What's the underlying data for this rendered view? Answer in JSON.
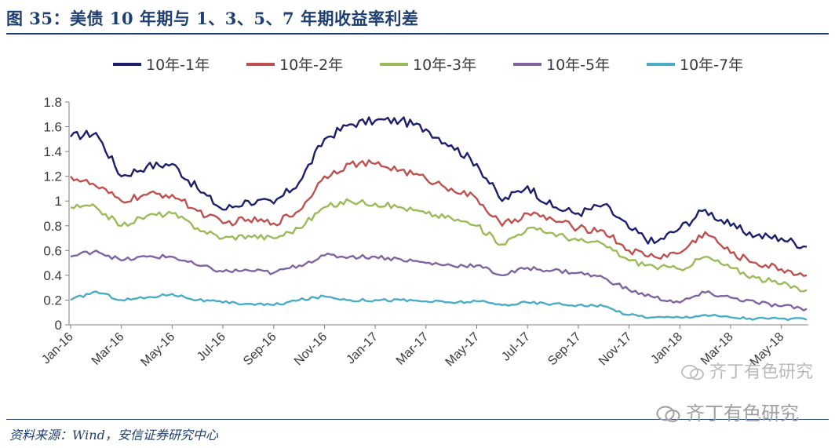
{
  "figure_title": "图 35：美债 10 年期与 1、3、5、7 年期收益率利差",
  "source_note": "资料来源：Wind，安信证券研究中心",
  "watermark": "齐丁有色研究",
  "colors": {
    "title": "#1f3f73",
    "axis": "#7f7f7f",
    "text": "#3a3a3a"
  },
  "chart_data": {
    "type": "line",
    "title": "",
    "xlabel": "",
    "ylabel": "",
    "ylim": [
      0,
      1.8
    ],
    "yticks": [
      "0",
      "0.2",
      "0.4",
      "0.6",
      "0.8",
      "1",
      "1.2",
      "1.4",
      "1.6",
      "1.8"
    ],
    "grid": false,
    "legend_position": "top",
    "x_tick_labels": [
      "Jan-16",
      "Mar-16",
      "May-16",
      "Jul-16",
      "Sep-16",
      "Nov-16",
      "Jan-17",
      "Mar-17",
      "May-17",
      "Jul-17",
      "Sep-17",
      "Nov-17",
      "Jan-18",
      "Mar-18",
      "May-18"
    ],
    "x": [
      "Jan-16",
      "Feb-16",
      "Mar-16",
      "Apr-16",
      "May-16",
      "Jun-16",
      "Jul-16",
      "Aug-16",
      "Sep-16",
      "Oct-16",
      "Nov-16",
      "Dec-16",
      "Jan-17",
      "Feb-17",
      "Mar-17",
      "Apr-17",
      "May-17",
      "Jun-17",
      "Jul-17",
      "Aug-17",
      "Sep-17",
      "Oct-17",
      "Nov-17",
      "Dec-17",
      "Jan-18",
      "Feb-18",
      "Mar-18",
      "Apr-18",
      "May-18",
      "Jun-18"
    ],
    "series": [
      {
        "name": "10年-1年",
        "color": "#1b1f6e",
        "values": [
          1.52,
          1.55,
          1.2,
          1.28,
          1.3,
          1.1,
          0.93,
          1.0,
          0.98,
          1.15,
          1.5,
          1.62,
          1.65,
          1.65,
          1.58,
          1.45,
          1.3,
          1.0,
          1.12,
          0.95,
          0.9,
          0.97,
          0.78,
          0.66,
          0.78,
          0.93,
          0.8,
          0.72,
          0.7,
          0.63
        ]
      },
      {
        "name": "10年-2年",
        "color": "#c0504d",
        "values": [
          1.2,
          1.12,
          1.0,
          1.05,
          1.05,
          0.92,
          0.82,
          0.85,
          0.82,
          0.92,
          1.2,
          1.3,
          1.3,
          1.25,
          1.18,
          1.1,
          1.02,
          0.8,
          0.9,
          0.85,
          0.78,
          0.76,
          0.6,
          0.55,
          0.58,
          0.75,
          0.58,
          0.5,
          0.45,
          0.4
        ]
      },
      {
        "name": "10年-3年",
        "color": "#9bbb59",
        "values": [
          0.95,
          0.95,
          0.8,
          0.88,
          0.9,
          0.78,
          0.7,
          0.72,
          0.7,
          0.78,
          0.95,
          1.0,
          0.98,
          0.95,
          0.9,
          0.86,
          0.8,
          0.65,
          0.78,
          0.74,
          0.68,
          0.65,
          0.52,
          0.47,
          0.45,
          0.55,
          0.46,
          0.38,
          0.33,
          0.28
        ]
      },
      {
        "name": "10年-5年",
        "color": "#8064a2",
        "values": [
          0.55,
          0.6,
          0.52,
          0.55,
          0.55,
          0.48,
          0.43,
          0.44,
          0.42,
          0.48,
          0.56,
          0.55,
          0.55,
          0.53,
          0.5,
          0.48,
          0.48,
          0.4,
          0.46,
          0.44,
          0.42,
          0.38,
          0.28,
          0.22,
          0.18,
          0.26,
          0.22,
          0.18,
          0.15,
          0.13
        ]
      },
      {
        "name": "10年-7年",
        "color": "#4bacc6",
        "values": [
          0.2,
          0.27,
          0.2,
          0.22,
          0.25,
          0.2,
          0.18,
          0.17,
          0.16,
          0.2,
          0.23,
          0.2,
          0.2,
          0.2,
          0.19,
          0.18,
          0.19,
          0.16,
          0.18,
          0.17,
          0.16,
          0.15,
          0.08,
          0.06,
          0.06,
          0.08,
          0.06,
          0.05,
          0.05,
          0.04
        ]
      }
    ]
  }
}
